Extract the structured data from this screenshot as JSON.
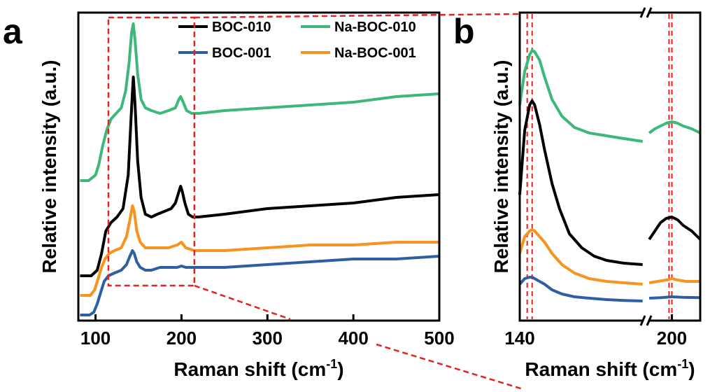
{
  "figure": {
    "panel_a_label": "a",
    "panel_b_label": "b"
  },
  "chart_data": [
    {
      "panel": "a",
      "type": "line",
      "xlabel": "Raman shift (cm",
      "xlabel_sup": "-1",
      "xlabel_close": ")",
      "ylabel": "Relative intensity (a.u.)",
      "xlim": [
        80,
        500
      ],
      "ylim": [
        0,
        1
      ],
      "xticks": [
        100,
        200,
        300,
        400,
        500
      ],
      "xtick_labels": [
        "100",
        "200",
        "300",
        "400",
        "500"
      ],
      "y_ticks_shown": false,
      "legend_position": "top-right",
      "zoom_box_x": [
        115,
        215
      ],
      "series": [
        {
          "name": "BOC-010",
          "color": "#000000",
          "x": [
            82,
            95,
            102,
            107,
            112,
            118,
            125,
            132,
            138,
            141,
            143,
            144,
            146,
            149,
            153,
            158,
            165,
            172,
            180,
            188,
            193,
            197,
            199,
            201,
            204,
            208,
            213,
            220,
            250,
            300,
            350,
            400,
            450,
            500
          ],
          "y": [
            0.14,
            0.14,
            0.16,
            0.22,
            0.3,
            0.33,
            0.35,
            0.38,
            0.5,
            0.68,
            0.8,
            0.85,
            0.75,
            0.55,
            0.42,
            0.36,
            0.35,
            0.36,
            0.37,
            0.38,
            0.4,
            0.44,
            0.46,
            0.44,
            0.4,
            0.36,
            0.35,
            0.35,
            0.36,
            0.38,
            0.39,
            0.4,
            0.42,
            0.43
          ]
        },
        {
          "name": "BOC-001",
          "color": "#2e5fa0",
          "x": [
            82,
            93,
            98,
            102,
            106,
            110,
            115,
            122,
            130,
            136,
            140,
            143,
            145,
            148,
            152,
            158,
            165,
            175,
            185,
            195,
            200,
            205,
            215,
            250,
            300,
            350,
            400,
            450,
            500
          ],
          "y": [
            0.0,
            0.0,
            0.01,
            0.04,
            0.08,
            0.12,
            0.14,
            0.15,
            0.16,
            0.18,
            0.21,
            0.23,
            0.22,
            0.19,
            0.17,
            0.16,
            0.16,
            0.17,
            0.17,
            0.17,
            0.175,
            0.17,
            0.17,
            0.17,
            0.18,
            0.19,
            0.2,
            0.2,
            0.21
          ]
        },
        {
          "name": "Na-BOC-010",
          "color": "#3cb878",
          "x": [
            82,
            92,
            100,
            104,
            108,
            113,
            118,
            124,
            130,
            135,
            139,
            142,
            144,
            146,
            149,
            153,
            158,
            165,
            175,
            185,
            193,
            197,
            199,
            202,
            206,
            212,
            220,
            250,
            300,
            350,
            400,
            450,
            500
          ],
          "y": [
            0.48,
            0.48,
            0.5,
            0.54,
            0.6,
            0.66,
            0.7,
            0.72,
            0.74,
            0.8,
            0.9,
            1.01,
            1.04,
            0.98,
            0.86,
            0.77,
            0.74,
            0.73,
            0.72,
            0.73,
            0.74,
            0.77,
            0.78,
            0.76,
            0.73,
            0.72,
            0.72,
            0.73,
            0.74,
            0.75,
            0.76,
            0.78,
            0.79
          ]
        },
        {
          "name": "Na-BOC-001",
          "color": "#f7931e",
          "x": [
            82,
            94,
            99,
            103,
            107,
            111,
            116,
            122,
            130,
            136,
            140,
            143,
            145,
            148,
            152,
            158,
            165,
            175,
            185,
            195,
            200,
            205,
            215,
            250,
            300,
            350,
            400,
            450,
            500
          ],
          "y": [
            0.07,
            0.07,
            0.09,
            0.13,
            0.17,
            0.2,
            0.22,
            0.23,
            0.24,
            0.28,
            0.34,
            0.39,
            0.37,
            0.3,
            0.26,
            0.24,
            0.24,
            0.24,
            0.24,
            0.25,
            0.26,
            0.24,
            0.23,
            0.23,
            0.24,
            0.25,
            0.25,
            0.26,
            0.26
          ]
        }
      ]
    },
    {
      "panel": "b",
      "type": "line",
      "xlabel": "Raman shift (cm",
      "xlabel_sup": "-1",
      "xlabel_close": ")",
      "ylabel": "Relative intensity (a.u.)",
      "xlim": [
        140,
        210
      ],
      "axis_break_at": 191,
      "ylim": [
        0,
        1
      ],
      "xticks": [
        140,
        200
      ],
      "xtick_labels": [
        "140",
        "200"
      ],
      "y_ticks_shown": false,
      "reference_lines_x": [
        143,
        145,
        199,
        200
      ],
      "series": [
        {
          "name": "Na-BOC-010",
          "color": "#3cb878",
          "segments": [
            {
              "x": [
                140,
                142,
                144,
                145,
                146,
                148,
                150,
                153,
                157,
                162,
                168,
                175,
                182,
                189.5
              ],
              "y": [
                0.72,
                0.84,
                0.9,
                0.915,
                0.91,
                0.88,
                0.82,
                0.74,
                0.68,
                0.64,
                0.62,
                0.61,
                0.6,
                0.59
              ]
            },
            {
              "x": [
                192,
                194,
                196,
                198,
                200,
                202,
                204,
                207,
                210
              ],
              "y": [
                0.62,
                0.635,
                0.645,
                0.655,
                0.66,
                0.655,
                0.645,
                0.635,
                0.62
              ]
            }
          ]
        },
        {
          "name": "BOC-010",
          "color": "#000000",
          "segments": [
            {
              "x": [
                140,
                142,
                144,
                145,
                146,
                148,
                150,
                153,
                156,
                160,
                165,
                170,
                175,
                182,
                189.5
              ],
              "y": [
                0.4,
                0.63,
                0.72,
                0.735,
                0.72,
                0.65,
                0.56,
                0.44,
                0.35,
                0.26,
                0.21,
                0.18,
                0.165,
                0.155,
                0.15
              ]
            },
            {
              "x": [
                192,
                194,
                196,
                198,
                200,
                202,
                204,
                207,
                210
              ],
              "y": [
                0.24,
                0.27,
                0.3,
                0.315,
                0.32,
                0.31,
                0.29,
                0.27,
                0.24
              ]
            }
          ]
        },
        {
          "name": "Na-BOC-001",
          "color": "#f7931e",
          "segments": [
            {
              "x": [
                140,
                142,
                144,
                145,
                146,
                148,
                150,
                153,
                157,
                162,
                168,
                175,
                182,
                189.5
              ],
              "y": [
                0.19,
                0.25,
                0.27,
                0.275,
                0.27,
                0.25,
                0.23,
                0.19,
                0.15,
                0.12,
                0.1,
                0.09,
                0.085,
                0.08
              ]
            },
            {
              "x": [
                192,
                195,
                198,
                200,
                202,
                205,
                208,
                210
              ],
              "y": [
                0.085,
                0.09,
                0.095,
                0.1,
                0.095,
                0.09,
                0.09,
                0.09
              ]
            }
          ]
        },
        {
          "name": "BOC-001",
          "color": "#2e5fa0",
          "segments": [
            {
              "x": [
                140,
                142,
                144,
                145,
                146,
                148,
                150,
                153,
                157,
                162,
                168,
                175,
                182,
                189.5
              ],
              "y": [
                0.08,
                0.1,
                0.105,
                0.105,
                0.1,
                0.09,
                0.08,
                0.06,
                0.045,
                0.035,
                0.03,
                0.025,
                0.022,
                0.02
              ]
            },
            {
              "x": [
                192,
                196,
                200,
                204,
                210
              ],
              "y": [
                0.03,
                0.032,
                0.035,
                0.033,
                0.032
              ]
            }
          ]
        }
      ]
    }
  ]
}
